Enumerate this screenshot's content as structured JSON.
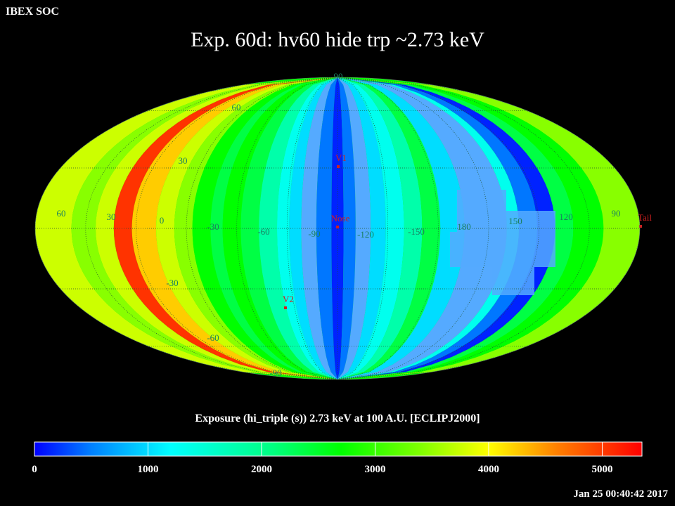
{
  "header": {
    "org": "IBEX SOC",
    "title": "Exp.   60d: hv60 hide trp ~2.73 keV"
  },
  "map": {
    "projection": "Mollweide (ecliptic, J2000)",
    "longitude_labels": [
      "60",
      "30",
      "0",
      "-30",
      "-60",
      "-90",
      "-120",
      "-150",
      "180",
      "150",
      "120",
      "90"
    ],
    "latitude_labels": [
      "90",
      "60",
      "30",
      "-30",
      "-60",
      "-90"
    ],
    "markers": [
      {
        "name": "V1"
      },
      {
        "name": "Nose"
      },
      {
        "name": "V2"
      },
      {
        "name": "Tail"
      }
    ],
    "colors": {
      "background": "#000000",
      "marker": "#d02020",
      "grid_label": "#1a8060"
    }
  },
  "colorbar": {
    "title": "Exposure (hi_triple (s))  2.73 keV at 100 A.U. [ECLIPJ2000]",
    "ticks": [
      "0",
      "1000",
      "2000",
      "3000",
      "4000",
      "5000"
    ],
    "range": [
      0,
      5350
    ],
    "stops": [
      {
        "v": 0,
        "color": "#0000ff"
      },
      {
        "v": 500,
        "color": "#0080ff"
      },
      {
        "v": 1200,
        "color": "#00ffff"
      },
      {
        "v": 2100,
        "color": "#00ff80"
      },
      {
        "v": 2700,
        "color": "#00ff00"
      },
      {
        "v": 3400,
        "color": "#80ff00"
      },
      {
        "v": 4000,
        "color": "#ffff00"
      },
      {
        "v": 4600,
        "color": "#ff8000"
      },
      {
        "v": 5350,
        "color": "#ff0000"
      }
    ]
  },
  "footer": {
    "timestamp": "Jan 25 00:40:42 2017"
  }
}
